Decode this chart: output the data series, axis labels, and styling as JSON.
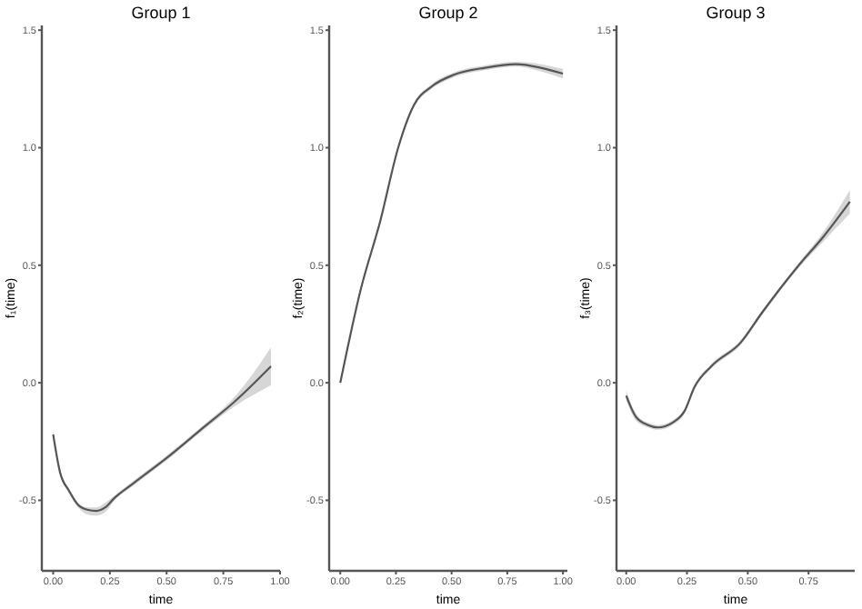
{
  "chart_data": [
    {
      "type": "line",
      "title": "Group 1",
      "xlabel": "time",
      "ylabel": "f₁(time)",
      "xlim": [
        -0.05,
        1.0
      ],
      "ylim": [
        -0.8,
        1.52
      ],
      "xticks": [
        {
          "value": 0,
          "label": "0.00"
        },
        {
          "value": 0.25,
          "label": "0.25"
        },
        {
          "value": 0.5,
          "label": "0.50"
        },
        {
          "value": 0.75,
          "label": "0.75"
        },
        {
          "value": 1,
          "label": "1.00"
        }
      ],
      "yticks": [
        {
          "value": -0.5,
          "label": "-0.5"
        },
        {
          "value": 0,
          "label": "0.0"
        },
        {
          "value": 0.5,
          "label": "0.5"
        },
        {
          "value": 1,
          "label": "1.0"
        },
        {
          "value": 1.5,
          "label": "1.5"
        }
      ],
      "grid": false,
      "series": [
        {
          "color": "#555555",
          "x": [
            0,
            0.03,
            0.07,
            0.11,
            0.15,
            0.19,
            0.23,
            0.27,
            0.35,
            0.5,
            0.65,
            0.8,
            0.96
          ],
          "values": [
            -0.22,
            -0.38,
            -0.46,
            -0.52,
            -0.54,
            -0.545,
            -0.53,
            -0.49,
            -0.43,
            -0.32,
            -0.2,
            -0.08,
            0.07
          ],
          "lower": [
            -0.24,
            -0.39,
            -0.47,
            -0.53,
            -0.56,
            -0.565,
            -0.55,
            -0.5,
            -0.44,
            -0.33,
            -0.21,
            -0.1,
            -0.01
          ],
          "upper": [
            -0.2,
            -0.37,
            -0.45,
            -0.51,
            -0.53,
            -0.53,
            -0.51,
            -0.48,
            -0.42,
            -0.31,
            -0.19,
            -0.06,
            0.15
          ]
        }
      ]
    },
    {
      "type": "line",
      "title": "Group 2",
      "xlabel": "time",
      "ylabel": "f₂(time)",
      "xlim": [
        -0.05,
        1.02
      ],
      "ylim": [
        -0.8,
        1.52
      ],
      "xticks": [
        {
          "value": 0,
          "label": "0.00"
        },
        {
          "value": 0.25,
          "label": "0.25"
        },
        {
          "value": 0.5,
          "label": "0.50"
        },
        {
          "value": 0.75,
          "label": "0.75"
        },
        {
          "value": 1,
          "label": "1.00"
        }
      ],
      "yticks": [
        {
          "value": -0.5,
          "label": "-0.5"
        },
        {
          "value": 0,
          "label": "0.0"
        },
        {
          "value": 0.5,
          "label": "0.5"
        },
        {
          "value": 1,
          "label": "1.0"
        },
        {
          "value": 1.5,
          "label": "1.5"
        }
      ],
      "grid": false,
      "series": [
        {
          "color": "#555555",
          "x": [
            0,
            0.09,
            0.18,
            0.26,
            0.33,
            0.41,
            0.51,
            0.65,
            0.79,
            0.9,
            1.0
          ],
          "values": [
            0,
            0.39,
            0.69,
            1.0,
            1.18,
            1.26,
            1.31,
            1.34,
            1.355,
            1.34,
            1.315
          ],
          "lower": [
            -0.01,
            0.38,
            0.68,
            0.99,
            1.17,
            1.25,
            1.3,
            1.33,
            1.345,
            1.325,
            1.295
          ],
          "upper": [
            0.01,
            0.4,
            0.7,
            1.01,
            1.19,
            1.27,
            1.32,
            1.35,
            1.365,
            1.355,
            1.335
          ]
        }
      ]
    },
    {
      "type": "line",
      "title": "Group 3",
      "xlabel": "time",
      "ylabel": "f₃(time)",
      "xlim": [
        -0.04,
        0.94
      ],
      "ylim": [
        -0.8,
        1.52
      ],
      "xticks": [
        {
          "value": 0,
          "label": "0.00"
        },
        {
          "value": 0.25,
          "label": "0.25"
        },
        {
          "value": 0.5,
          "label": "0.50"
        },
        {
          "value": 0.75,
          "label": "0.75"
        }
      ],
      "yticks": [
        {
          "value": -0.5,
          "label": "-0.5"
        },
        {
          "value": 0,
          "label": "0.0"
        },
        {
          "value": 0.5,
          "label": "0.5"
        },
        {
          "value": 1,
          "label": "1.0"
        },
        {
          "value": 1.5,
          "label": "1.5"
        }
      ],
      "grid": false,
      "series": [
        {
          "color": "#555555",
          "x": [
            0,
            0.04,
            0.09,
            0.13,
            0.19,
            0.24,
            0.28,
            0.35,
            0.47,
            0.56,
            0.71,
            0.81,
            0.92
          ],
          "values": [
            -0.055,
            -0.145,
            -0.18,
            -0.19,
            -0.17,
            -0.12,
            -0.02,
            0.07,
            0.17,
            0.3,
            0.5,
            0.62,
            0.77
          ],
          "lower": [
            -0.075,
            -0.16,
            -0.19,
            -0.2,
            -0.18,
            -0.13,
            -0.03,
            0.06,
            0.16,
            0.29,
            0.49,
            0.6,
            0.72
          ],
          "upper": [
            -0.035,
            -0.13,
            -0.17,
            -0.18,
            -0.16,
            -0.11,
            -0.01,
            0.08,
            0.18,
            0.31,
            0.51,
            0.64,
            0.82
          ]
        }
      ]
    }
  ]
}
